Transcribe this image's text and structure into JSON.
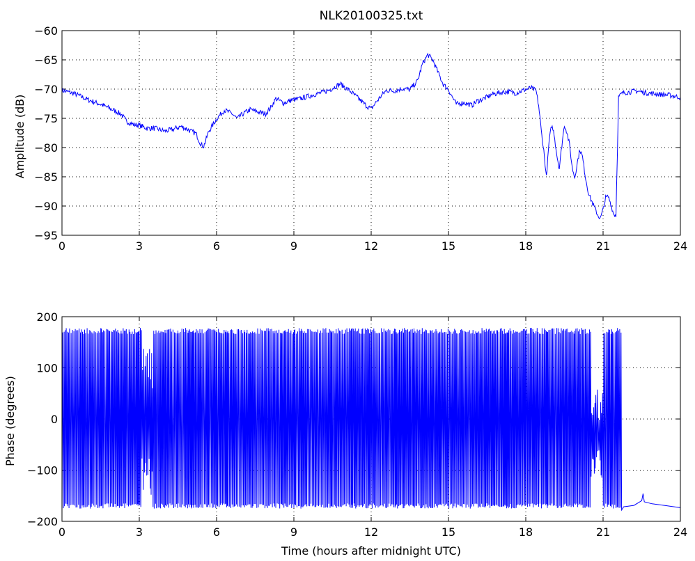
{
  "chart_data": [
    {
      "type": "line",
      "title": "NLK20100325.txt",
      "xlabel": "",
      "ylabel": "Amplitude (dB)",
      "xlim": [
        0,
        24
      ],
      "ylim": [
        -95,
        -60
      ],
      "xticks": [
        "0",
        "3",
        "6",
        "9",
        "12",
        "15",
        "18",
        "21",
        "24"
      ],
      "yticks": [
        "-60",
        "-65",
        "-70",
        "-75",
        "-80",
        "-85",
        "-90",
        "-95"
      ],
      "grid": true,
      "color": "#0000ff",
      "series": [
        {
          "x": [
            0,
            0.5,
            1,
            1.5,
            2,
            2.3,
            2.5,
            2.8,
            3,
            3.3,
            3.6,
            4,
            4.3,
            4.6,
            4.8,
            5,
            5.2,
            5.3,
            5.4,
            5.5,
            5.7,
            5.9,
            6,
            6.3,
            6.6,
            6.8,
            7,
            7.3,
            7.6,
            7.9,
            8.1,
            8.3,
            8.6,
            8.9,
            9.2,
            9.5,
            9.8,
            10.1,
            10.4,
            10.8,
            11.2,
            11.5,
            11.8,
            12,
            12.2,
            12.4,
            12.6,
            12.9,
            13.2,
            13.5,
            13.8,
            14,
            14.2,
            14.4,
            14.6,
            14.8,
            15,
            15.3,
            15.6,
            15.9,
            16.1,
            16.4,
            16.7,
            17,
            17.3,
            17.6,
            17.9,
            18.2,
            18.4,
            18.5,
            18.6,
            18.7,
            18.8,
            18.9,
            19,
            19.1,
            19.2,
            19.3,
            19.4,
            19.5,
            19.6,
            19.7,
            19.8,
            19.9,
            20,
            20.1,
            20.2,
            20.3,
            20.4,
            20.5,
            20.6,
            20.7,
            20.8,
            20.9,
            21,
            21.1,
            21.2,
            21.3,
            21.4,
            21.5,
            21.6,
            21.7,
            21.8,
            22,
            22.3,
            22.6,
            23,
            23.5,
            24
          ],
          "y": [
            -70.2,
            -70.8,
            -71.8,
            -72.6,
            -73.6,
            -74.3,
            -75.5,
            -76.1,
            -76.2,
            -76.7,
            -76.7,
            -77.2,
            -76.9,
            -76.4,
            -76.7,
            -77.2,
            -77.6,
            -78.6,
            -79.5,
            -79.8,
            -77.2,
            -75.8,
            -75.1,
            -73.6,
            -74.2,
            -75.1,
            -74.3,
            -73.5,
            -73.9,
            -74.2,
            -73.2,
            -71.6,
            -72.4,
            -71.9,
            -71.7,
            -71.3,
            -70.9,
            -70.6,
            -70.1,
            -69.1,
            -70.4,
            -71.6,
            -72.8,
            -73.4,
            -72.2,
            -71.1,
            -70.2,
            -70.3,
            -69.9,
            -70.1,
            -68.6,
            -65.6,
            -64.1,
            -65.1,
            -67.2,
            -69.2,
            -70.1,
            -72.6,
            -72.3,
            -72.8,
            -72.1,
            -71.6,
            -70.9,
            -70.6,
            -70.4,
            -70.7,
            -70.2,
            -69.8,
            -70.3,
            -72.8,
            -77.1,
            -80.6,
            -85.1,
            -79.2,
            -76.2,
            -77.6,
            -81.1,
            -83.6,
            -79.6,
            -76.1,
            -77.4,
            -79.6,
            -83.4,
            -85.1,
            -82.6,
            -80.3,
            -81.6,
            -84.6,
            -87.1,
            -88.6,
            -89.6,
            -90.6,
            -91.6,
            -92.1,
            -90.6,
            -88.6,
            -88.4,
            -89.6,
            -91.3,
            -91.6,
            -71.4,
            -70.9,
            -70.6,
            -70.5,
            -70.3,
            -70.6,
            -70.8,
            -71.0,
            -71.4
          ]
        }
      ]
    },
    {
      "type": "line",
      "title": "",
      "xlabel": "Time (hours after midnight UTC)",
      "ylabel": "Phase (degrees)",
      "xlim": [
        0,
        24
      ],
      "ylim": [
        -200,
        200
      ],
      "xticks": [
        "0",
        "3",
        "6",
        "9",
        "12",
        "15",
        "18",
        "21",
        "24"
      ],
      "yticks": [
        "200",
        "100",
        "0",
        "-100",
        "-200"
      ],
      "grid": true,
      "color": "#0000ff",
      "series": [
        {
          "x": [
            0,
            3.0,
            3.1,
            3.3,
            3.5,
            20.4,
            20.6,
            21.7,
            21.8,
            22.2,
            22.5,
            22.55,
            22.6,
            22.9,
            23.4,
            24
          ],
          "y": [
            0,
            0,
            150,
            -150,
            0,
            0,
            0,
            0,
            -172,
            -168,
            -160,
            -145,
            -162,
            -165,
            -168,
            -174
          ]
        }
      ]
    }
  ]
}
